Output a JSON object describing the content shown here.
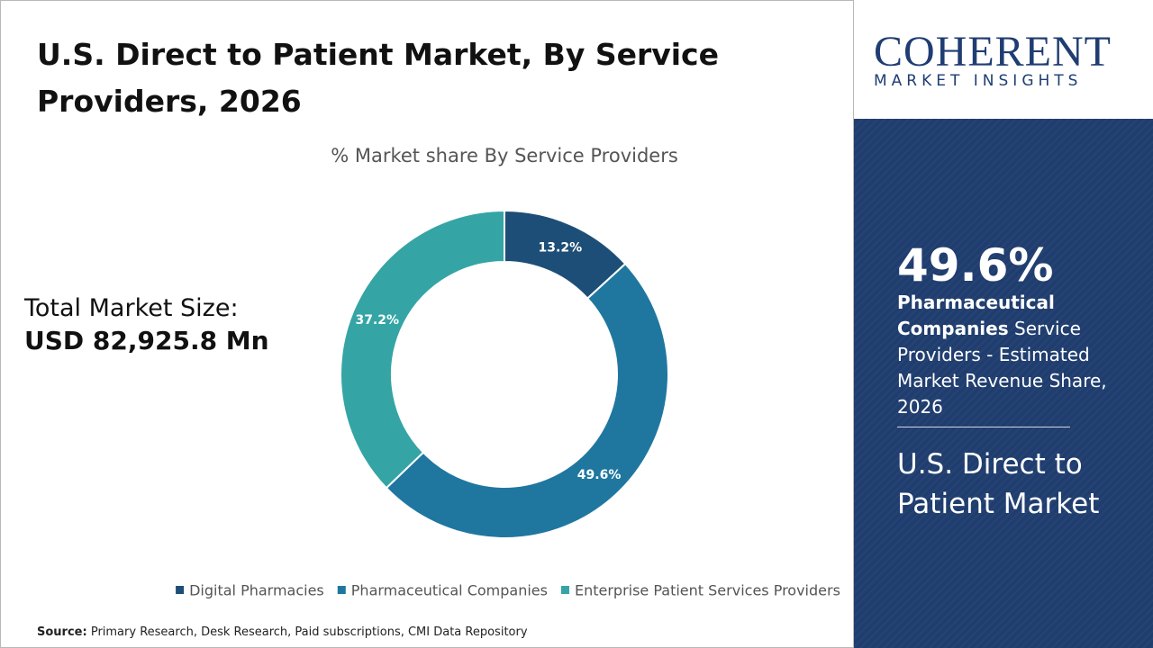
{
  "title": "U.S. Direct to Patient Market, By Service Providers, 2026",
  "total_label": "Total Market Size:",
  "total_value": "USD 82,925.8 Mn",
  "source_label": "Source:",
  "source_text": "Primary Research, Desk Research, Paid subscriptions, CMI Data Repository",
  "logo": {
    "name": "COHERENT",
    "tagline": "MARKET INSIGHTS"
  },
  "sidebar": {
    "highlight": "49.6%",
    "bold": "Pharmaceutical Companies",
    "text": "Service Providers - Estimated Market Revenue Share, 2026",
    "market": "U.S. Direct to Patient Market"
  },
  "chart_data": {
    "type": "donut",
    "title": "% Market share By Service Providers",
    "categories": [
      "Digital Pharmacies",
      "Pharmaceutical Companies",
      "Enterprise Patient Services Providers"
    ],
    "values": [
      13.2,
      49.6,
      37.2
    ],
    "value_labels": [
      "13.2%",
      "49.6%",
      "37.2%"
    ],
    "colors": [
      "#1d4e77",
      "#1f77a0",
      "#35a4a4"
    ],
    "legend": "bottom"
  }
}
